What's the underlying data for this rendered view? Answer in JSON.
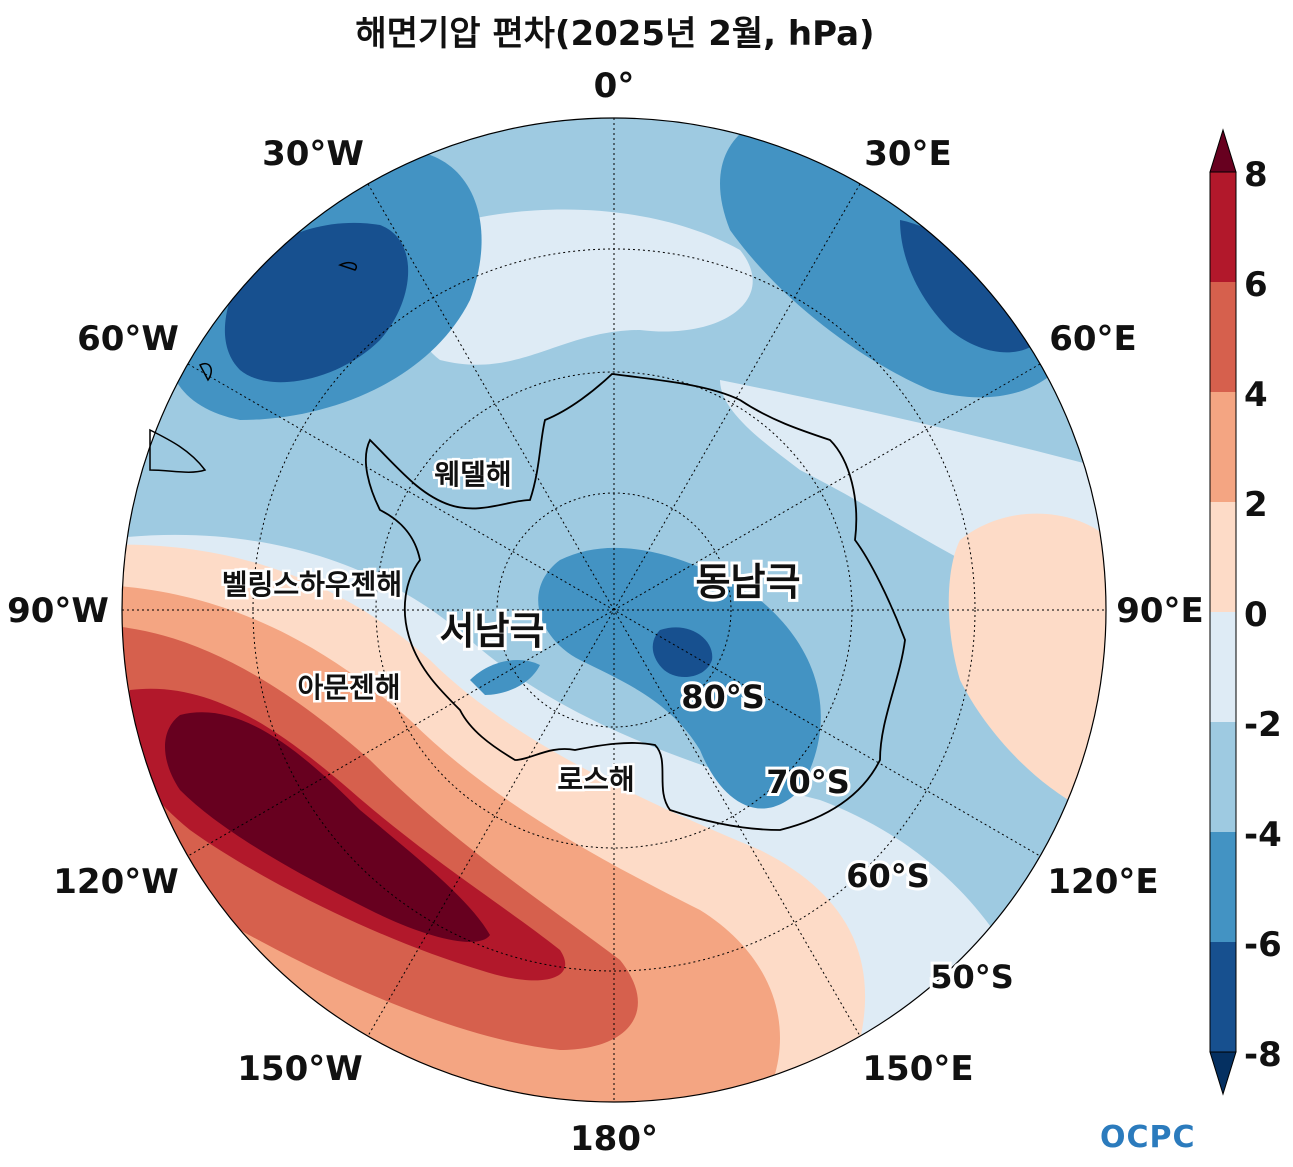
{
  "title": "해면기압 편차(2025년 2월, hPa)",
  "map": {
    "projection": "south-polar-stereographic",
    "longitude_labels": [
      "0°",
      "30°E",
      "60°E",
      "90°E",
      "120°E",
      "150°E",
      "180°",
      "150°W",
      "120°W",
      "90°W",
      "60°W",
      "30°W"
    ],
    "latitude_labels": [
      "80°S",
      "70°S",
      "60°S",
      "50°S"
    ],
    "regions": [
      "웨델해",
      "벨링스하우젠해",
      "서남극",
      "동남극",
      "아문젠해",
      "로스해"
    ]
  },
  "colorbar": {
    "ticks": [
      "8",
      "6",
      "4",
      "2",
      "0",
      "-2",
      "-4",
      "-6",
      "-8"
    ],
    "colors": [
      "#67001f",
      "#b2182b",
      "#d6604d",
      "#f4a582",
      "#fddbc7",
      "#deebf5",
      "#9ecae1",
      "#4393c3",
      "#2166ac",
      "#053061"
    ],
    "extend": "both"
  },
  "logo": "OCPC"
}
